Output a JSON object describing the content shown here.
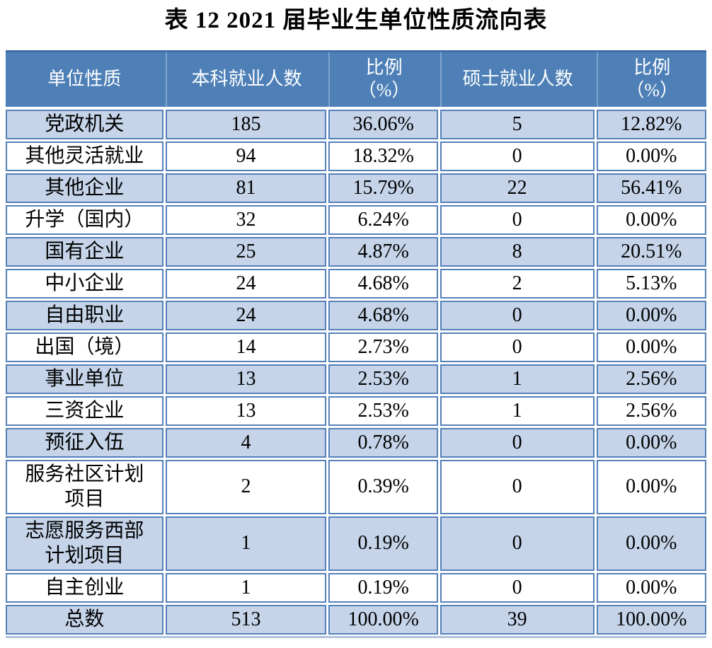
{
  "title": "表 12 2021 届毕业生单位性质流向表",
  "colors": {
    "header_bg": "#4E80B7",
    "header_top_edge": "#3D6DA6",
    "header_text": "#FFFFFF",
    "row_shade": "#C5D4E9",
    "cell_border": "#5580B8",
    "body_text": "#000000"
  },
  "table": {
    "headers": [
      "单位性质",
      "本科就业人数",
      "比例\n（%）",
      "硕士就业人数",
      "比例\n（%）"
    ],
    "rows": [
      [
        "党政机关",
        "185",
        "36.06%",
        "5",
        "12.82%"
      ],
      [
        "其他灵活就业",
        "94",
        "18.32%",
        "0",
        "0.00%"
      ],
      [
        "其他企业",
        "81",
        "15.79%",
        "22",
        "56.41%"
      ],
      [
        "升学（国内）",
        "32",
        "6.24%",
        "0",
        "0.00%"
      ],
      [
        "国有企业",
        "25",
        "4.87%",
        "8",
        "20.51%"
      ],
      [
        "中小企业",
        "24",
        "4.68%",
        "2",
        "5.13%"
      ],
      [
        "自由职业",
        "24",
        "4.68%",
        "0",
        "0.00%"
      ],
      [
        "出国（境）",
        "14",
        "2.73%",
        "0",
        "0.00%"
      ],
      [
        "事业单位",
        "13",
        "2.53%",
        "1",
        "2.56%"
      ],
      [
        "三资企业",
        "13",
        "2.53%",
        "1",
        "2.56%"
      ],
      [
        "预征入伍",
        "4",
        "0.78%",
        "0",
        "0.00%"
      ],
      [
        "服务社区计划\n项目",
        "2",
        "0.39%",
        "0",
        "0.00%"
      ],
      [
        "志愿服务西部\n计划项目",
        "1",
        "0.19%",
        "0",
        "0.00%"
      ],
      [
        "自主创业",
        "1",
        "0.19%",
        "0",
        "0.00%"
      ],
      [
        "总数",
        "513",
        "100.00%",
        "39",
        "100.00%"
      ]
    ]
  }
}
